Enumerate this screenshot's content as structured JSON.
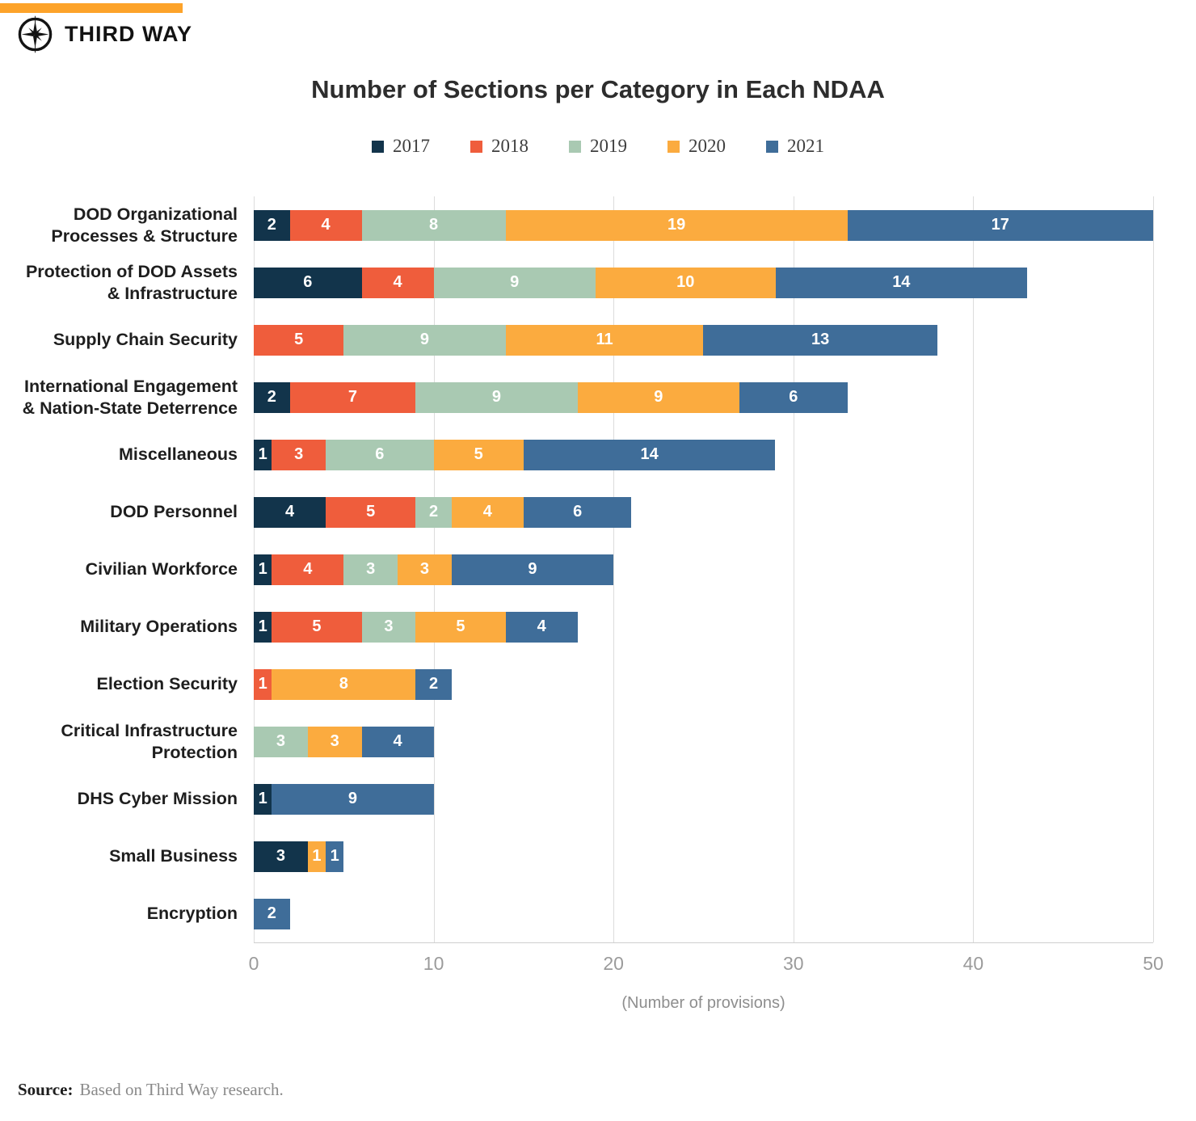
{
  "brand": {
    "logo_text": "THIRD WAY",
    "bar_color": "#fda32a",
    "logo_icon": "compass-star-icon"
  },
  "legend": [
    {
      "label": "2017",
      "color": "#12344b"
    },
    {
      "label": "2018",
      "color": "#ef5d3c"
    },
    {
      "label": "2019",
      "color": "#a9c9b2"
    },
    {
      "label": "2020",
      "color": "#fbab3f"
    },
    {
      "label": "2021",
      "color": "#3f6d99"
    }
  ],
  "chart_data": {
    "type": "bar",
    "orientation": "horizontal",
    "stacked": true,
    "title": "Number of Sections per Category in Each NDAA",
    "xlabel": "(Number of provisions)",
    "ylabel": "",
    "xlim": [
      0,
      50
    ],
    "xticks": [
      0,
      10,
      20,
      30,
      40,
      50
    ],
    "grid": true,
    "legend_position": "top",
    "categories": [
      "DOD Organizational\nProcesses & Structure",
      "Protection of DOD Assets\n& Infrastructure",
      "Supply Chain Security",
      "International Engagement\n& Nation-State Deterrence",
      "Miscellaneous",
      "DOD Personnel",
      "Civilian Workforce",
      "Military Operations",
      "Election Security",
      "Critical Infrastructure\nProtection",
      "DHS Cyber Mission",
      "Small Business",
      "Encryption"
    ],
    "series": [
      {
        "name": "2017",
        "values": [
          2,
          6,
          0,
          2,
          1,
          4,
          1,
          1,
          0,
          0,
          1,
          3,
          0
        ]
      },
      {
        "name": "2018",
        "values": [
          4,
          4,
          5,
          7,
          3,
          5,
          4,
          5,
          1,
          0,
          0,
          0,
          0
        ]
      },
      {
        "name": "2019",
        "values": [
          8,
          9,
          9,
          9,
          6,
          2,
          3,
          3,
          0,
          3,
          0,
          0,
          0
        ]
      },
      {
        "name": "2020",
        "values": [
          19,
          10,
          11,
          9,
          5,
          4,
          3,
          5,
          8,
          3,
          0,
          1,
          0
        ]
      },
      {
        "name": "2021",
        "values": [
          17,
          14,
          13,
          6,
          14,
          6,
          9,
          4,
          2,
          4,
          9,
          1,
          2
        ]
      }
    ],
    "totals": [
      50,
      43,
      38,
      33,
      29,
      21,
      20,
      18,
      11,
      10,
      10,
      5,
      2
    ]
  },
  "source": {
    "prefix": "Source:",
    "text": "Based on Third Way research."
  }
}
